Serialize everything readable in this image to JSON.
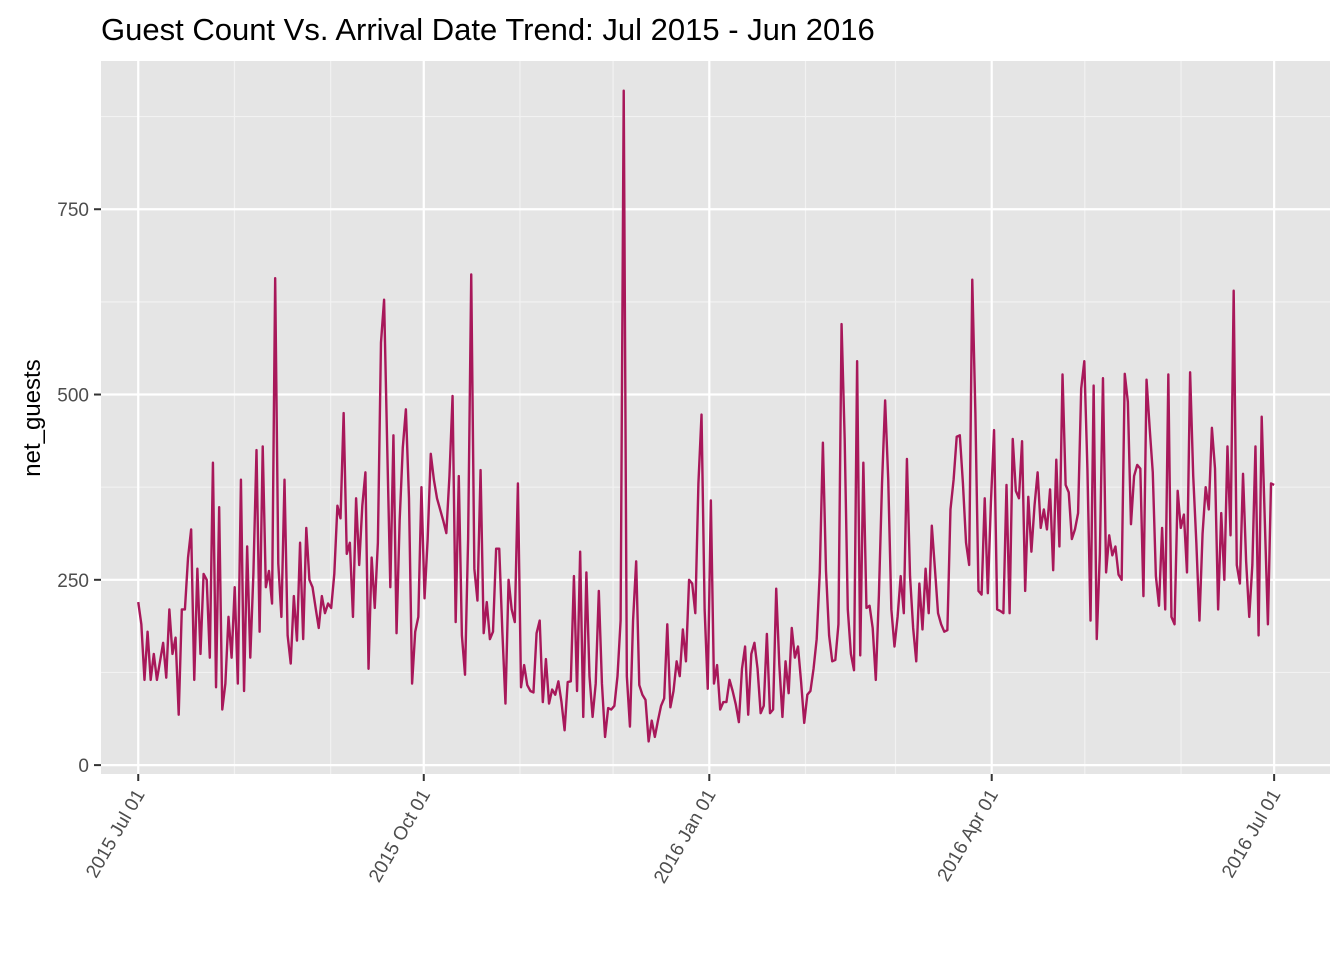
{
  "chart_data": {
    "type": "line",
    "title": "Guest Count Vs. Arrival Date Trend: Jul 2015 - Jun 2016",
    "xlabel": "",
    "ylabel": "net_guests",
    "x_start": "2015-07-01",
    "x_end": "2016-07-01",
    "xlim": [
      "2015-06-19",
      "2016-07-19"
    ],
    "ylim": [
      -12,
      950
    ],
    "x_ticks": [
      {
        "date": "2015-07-01",
        "label": "2015 Jul 01"
      },
      {
        "date": "2015-10-01",
        "label": "2015 Oct 01"
      },
      {
        "date": "2016-01-01",
        "label": "2016 Jan 01"
      },
      {
        "date": "2016-04-01",
        "label": "2016 Apr 01"
      },
      {
        "date": "2016-07-01",
        "label": "2016 Jul 01"
      }
    ],
    "x_minor_dates": [
      "2015-08-01",
      "2015-09-01",
      "2015-11-01",
      "2015-12-01",
      "2016-02-01",
      "2016-03-01",
      "2016-05-01",
      "2016-06-01"
    ],
    "y_ticks": [
      0,
      250,
      500,
      750
    ],
    "grid": true,
    "panel_background": "#e5e5e5",
    "line_color": "#a8185a",
    "series": [
      {
        "values": [
          220,
          190,
          115,
          180,
          115,
          150,
          115,
          140,
          165,
          118,
          210,
          150,
          172,
          68,
          210,
          210,
          280,
          318,
          115,
          265,
          150,
          258,
          250,
          145,
          408,
          105,
          348,
          75,
          110,
          200,
          145,
          240,
          110,
          385,
          100,
          295,
          145,
          258,
          425,
          180,
          430,
          240,
          262,
          218,
          657,
          272,
          200,
          385,
          175,
          137,
          228,
          168,
          300,
          170,
          320,
          250,
          240,
          212,
          185,
          228,
          205,
          218,
          212,
          258,
          350,
          333,
          475,
          285,
          300,
          200,
          360,
          270,
          350,
          395,
          130,
          280,
          212,
          300,
          570,
          628,
          430,
          240,
          445,
          178,
          330,
          428,
          480,
          360,
          110,
          180,
          200,
          375,
          225,
          305,
          420,
          385,
          360,
          345,
          330,
          313,
          390,
          498,
          193,
          390,
          175,
          122,
          305,
          662,
          265,
          222,
          398,
          178,
          220,
          170,
          180,
          292,
          292,
          180,
          83,
          250,
          210,
          193,
          380,
          105,
          135,
          108,
          100,
          98,
          178,
          195,
          85,
          143,
          83,
          102,
          95,
          113,
          85,
          47,
          112,
          113,
          255,
          100,
          288,
          65,
          260,
          120,
          65,
          110,
          235,
          110,
          38,
          77,
          75,
          80,
          120,
          195,
          910,
          120,
          52,
          195,
          275,
          108,
          95,
          88,
          32,
          60,
          38,
          60,
          80,
          90,
          190,
          78,
          100,
          140,
          120,
          183,
          140,
          250,
          245,
          205,
          380,
          473,
          210,
          103,
          357,
          110,
          135,
          75,
          85,
          85,
          115,
          100,
          82,
          58,
          130,
          160,
          68,
          150,
          165,
          130,
          70,
          80,
          177,
          70,
          75,
          238,
          135,
          65,
          140,
          97,
          185,
          145,
          160,
          112,
          57,
          95,
          100,
          130,
          170,
          260,
          435,
          262,
          175,
          140,
          142,
          190,
          595,
          440,
          210,
          150,
          128,
          545,
          148,
          408,
          212,
          215,
          185,
          115,
          230,
          380,
          492,
          385,
          210,
          160,
          200,
          255,
          205,
          413,
          255,
          185,
          140,
          245,
          183,
          265,
          205,
          323,
          265,
          205,
          190,
          180,
          182,
          345,
          385,
          443,
          445,
          380,
          300,
          270,
          655,
          475,
          235,
          230,
          360,
          232,
          355,
          452,
          210,
          208,
          205,
          378,
          205,
          440,
          370,
          360,
          437,
          235,
          362,
          288,
          350,
          395,
          320,
          345,
          318,
          372,
          263,
          412,
          295,
          527,
          378,
          368,
          305,
          318,
          340,
          508,
          545,
          400,
          195,
          512,
          170,
          285,
          522,
          260,
          310,
          283,
          295,
          257,
          250,
          528,
          490,
          325,
          390,
          405,
          400,
          228,
          520,
          455,
          395,
          255,
          215,
          320,
          210,
          527,
          200,
          190,
          370,
          320,
          338,
          260,
          530,
          390,
          300,
          195,
          312,
          375,
          345,
          455,
          400,
          210,
          340,
          250,
          430,
          310,
          640,
          270,
          245,
          393,
          275,
          200,
          270,
          430,
          175,
          470,
          330,
          190,
          380,
          378
        ]
      }
    ]
  }
}
